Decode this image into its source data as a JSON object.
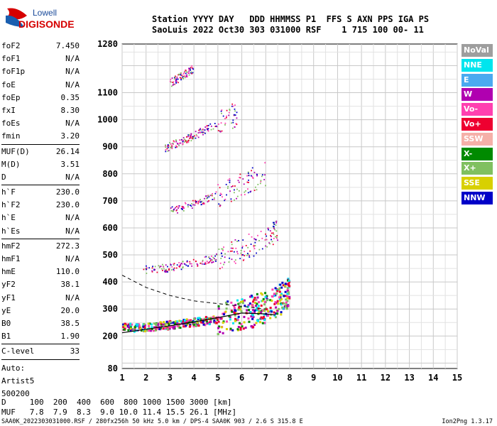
{
  "brand": {
    "line1": "Lowell",
    "line2": "DIGISONDE"
  },
  "header": {
    "line1": "Station YYYY DAY   DDD HHMMSS P1  FFS S AXN PPS IGA PS",
    "line2": "SaoLuis 2022 Oct30 303 031000 RSF    1 715 100 00- 11"
  },
  "params": [
    {
      "k": "foF2",
      "v": "7.450"
    },
    {
      "k": "foF1",
      "v": "N/A"
    },
    {
      "k": "foF1p",
      "v": "N/A"
    },
    {
      "k": "foE",
      "v": "N/A"
    },
    {
      "k": "foEp",
      "v": "0.35"
    },
    {
      "k": "fxI",
      "v": "8.30"
    },
    {
      "k": "foEs",
      "v": "N/A"
    },
    {
      "k": "fmin",
      "v": "3.20"
    },
    {
      "k": "MUF(D)",
      "v": "26.14"
    },
    {
      "k": "M(D)",
      "v": "3.51"
    },
    {
      "k": "D",
      "v": "N/A"
    },
    {
      "k": "h`F",
      "v": "230.0"
    },
    {
      "k": "h`F2",
      "v": "230.0"
    },
    {
      "k": "h`E",
      "v": "N/A"
    },
    {
      "k": "h`Es",
      "v": "N/A"
    },
    {
      "k": "hmF2",
      "v": "272.3"
    },
    {
      "k": "hmF1",
      "v": "N/A"
    },
    {
      "k": "hmE",
      "v": "110.0"
    },
    {
      "k": "yF2",
      "v": "38.1"
    },
    {
      "k": "yF1",
      "v": "N/A"
    },
    {
      "k": "yE",
      "v": "20.0"
    },
    {
      "k": "B0",
      "v": "38.5"
    },
    {
      "k": "B1",
      "v": "1.90"
    },
    {
      "k": "C-level",
      "v": "33"
    }
  ],
  "autoscaling": {
    "line1": "Auto:",
    "line2": "Artist5",
    "line3": "500200"
  },
  "legend": [
    {
      "label": "NoVal",
      "color": "#9e9e9e"
    },
    {
      "label": "NNE",
      "color": "#00e5ee"
    },
    {
      "label": "E",
      "color": "#4aaaf0"
    },
    {
      "label": "W",
      "color": "#b000b0"
    },
    {
      "label": "Vo-",
      "color": "#ff40b0"
    },
    {
      "label": "Vo+",
      "color": "#ee0030"
    },
    {
      "label": "SSW",
      "color": "#f5b0a8"
    },
    {
      "label": "X-",
      "color": "#008a00"
    },
    {
      "label": "X+",
      "color": "#80c060"
    },
    {
      "label": "SSE",
      "color": "#d8d000"
    },
    {
      "label": "NNW",
      "color": "#0000c8"
    }
  ],
  "muf_table": {
    "line1": "D     100  200  400  600  800 1000 1500 3000 [km]",
    "line2": "MUF   7.8  7.9  8.3  9.0 10.0 11.4 15.5 26.1 [MHz]"
  },
  "footer": {
    "file": "SAA0K_2022303031000.RSF / 280fx256h 50 kHz 5.0 km / DPS-4 SAA0K 903 / 2.6 S 315.8 E",
    "version": "Ion2Png 1.3.17"
  },
  "chart_data": {
    "type": "scatter",
    "xlim": [
      1,
      15
    ],
    "x_ticks": [
      "1",
      "2",
      "3",
      "4",
      "5",
      "6",
      "7",
      "8",
      "9",
      "10",
      "11",
      "12",
      "13",
      "14",
      "15"
    ],
    "y_ticks": [
      "80",
      "200",
      "300",
      "400",
      "500",
      "600",
      "700",
      "800",
      "900",
      "1000",
      "1100",
      "1280"
    ],
    "y_tick_values": [
      80,
      200,
      300,
      400,
      500,
      600,
      700,
      800,
      900,
      1000,
      1100,
      1280
    ],
    "ylim": [
      80,
      1280
    ],
    "grid": true,
    "traces": [
      {
        "name": "F2 1st hop",
        "x": [
          1.05,
          2,
          3,
          4,
          5,
          6,
          6.8,
          7.5,
          8
        ],
        "y": [
          230,
          232,
          240,
          250,
          262,
          280,
          300,
          330,
          360
        ]
      },
      {
        "name": "F2 2nd hop",
        "x": [
          1.9,
          3,
          4,
          5,
          6,
          7,
          7.5
        ],
        "y": [
          445,
          452,
          470,
          490,
          520,
          560,
          590
        ]
      },
      {
        "name": "F2 3rd hop",
        "x": [
          3,
          4,
          5,
          6,
          7
        ],
        "y": [
          660,
          690,
          720,
          760,
          800
        ]
      },
      {
        "name": "F2 4th hop",
        "x": [
          2.8,
          3.5,
          4,
          5,
          5.8
        ],
        "y": [
          895,
          920,
          940,
          990,
          1020
        ]
      },
      {
        "name": "F2 5th hop",
        "x": [
          3,
          3.5,
          4
        ],
        "y": [
          1135,
          1160,
          1190
        ]
      }
    ],
    "profile": [
      [
        1,
        212
      ],
      [
        2,
        225
      ],
      [
        3,
        238
      ],
      [
        4,
        252
      ],
      [
        5,
        268
      ],
      [
        6,
        285
      ],
      [
        7,
        282
      ],
      [
        7.4,
        278
      ]
    ],
    "extrapolated": [
      [
        1,
        425
      ],
      [
        2,
        380
      ],
      [
        3,
        350
      ],
      [
        4,
        330
      ],
      [
        5,
        320
      ],
      [
        6,
        310
      ],
      [
        7,
        300
      ]
    ]
  }
}
